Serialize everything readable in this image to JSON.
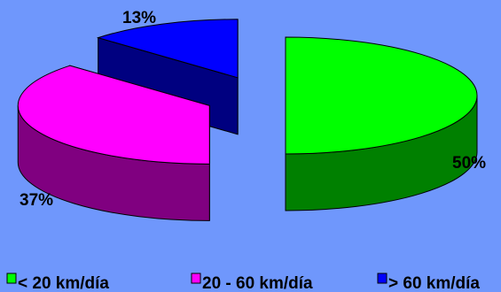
{
  "chart_data": {
    "type": "pie",
    "title": "",
    "style": "3d-exploded",
    "legend_position": "bottom",
    "background": "#6f97fc",
    "slices": [
      {
        "label": "< 20 km/día",
        "value": 50,
        "display": "50%",
        "top_color": "#00ff00",
        "side_color": "#008000",
        "legend_color": "#00ff00"
      },
      {
        "label": "20 - 60 km/día",
        "value": 37,
        "display": "37%",
        "top_color": "#ff00ff",
        "side_color": "#800080",
        "legend_color": "#ff00ff"
      },
      {
        "label": "> 60 km/día",
        "value": 13,
        "display": "13%",
        "top_color": "#0000ff",
        "side_color": "#000080",
        "legend_color": "#0000ff"
      }
    ]
  }
}
